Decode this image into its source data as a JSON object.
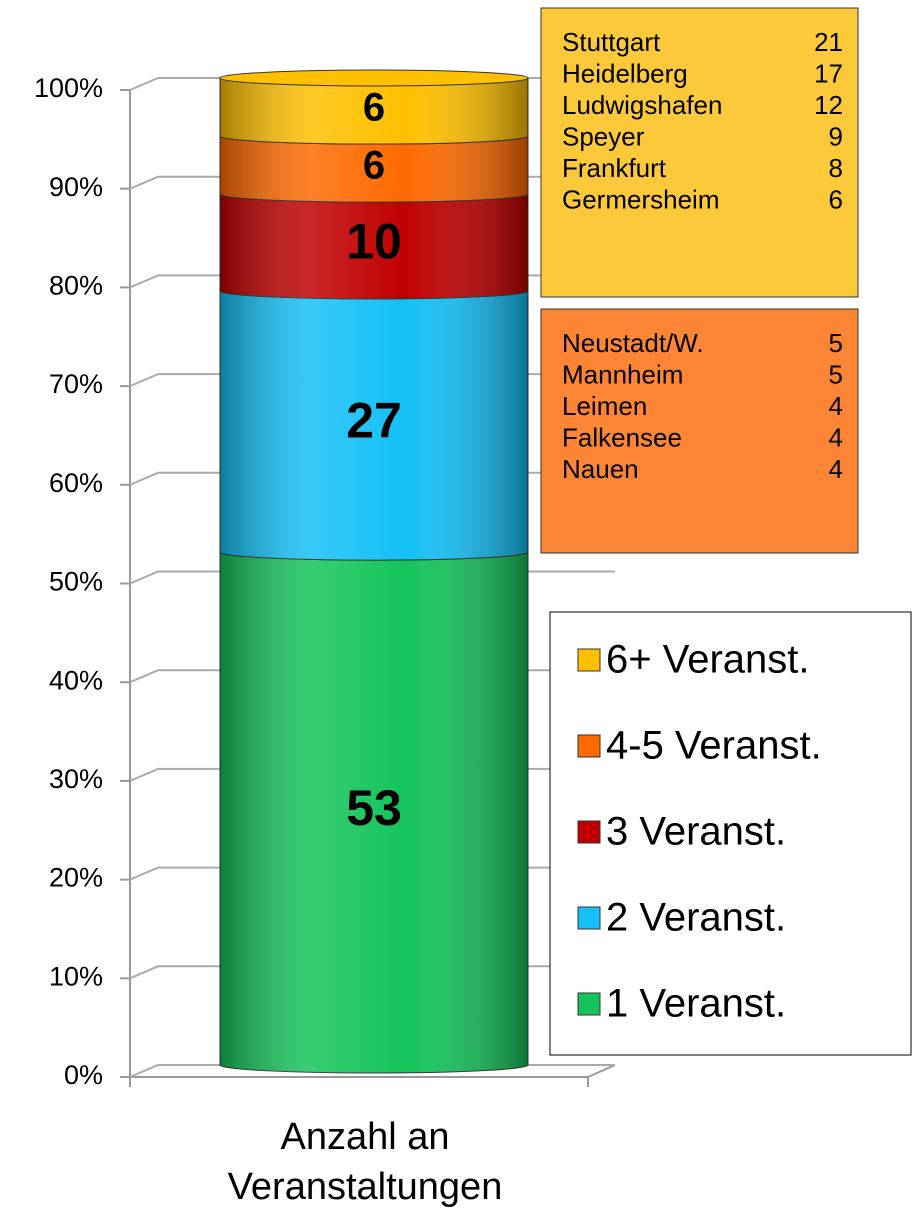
{
  "chart_data": {
    "type": "stacked_percent_bar",
    "categories": [
      "Anzahl an Veranstaltungen"
    ],
    "ylim": [
      0,
      100
    ],
    "yticks": [
      {
        "value": 0,
        "label": "0%"
      },
      {
        "value": 10,
        "label": "10%"
      },
      {
        "value": 20,
        "label": "20%"
      },
      {
        "value": 30,
        "label": "30%"
      },
      {
        "value": 40,
        "label": "40%"
      },
      {
        "value": 50,
        "label": "50%"
      },
      {
        "value": 60,
        "label": "60%"
      },
      {
        "value": 70,
        "label": "70%"
      },
      {
        "value": 80,
        "label": "80%"
      },
      {
        "value": 90,
        "label": "90%"
      },
      {
        "value": 100,
        "label": "100%"
      }
    ],
    "grid": true,
    "series": [
      {
        "name": "1 Veranst.",
        "color": "#14c45a",
        "values": [
          53
        ]
      },
      {
        "name": "2 Veranst.",
        "color": "#14c0f6",
        "values": [
          27
        ]
      },
      {
        "name": "3 Veranst.",
        "color": "#c00000",
        "values": [
          10
        ]
      },
      {
        "name": "4-5 Veranst.",
        "color": "#ff6a00",
        "values": [
          6
        ]
      },
      {
        "name": "6+ Veranst.",
        "color": "#ffc000",
        "values": [
          6
        ]
      }
    ],
    "city_lists": [
      {
        "color": "#fcc93b",
        "items": [
          {
            "name": "Stuttgart",
            "value": 21
          },
          {
            "name": "Heidelberg",
            "value": 17
          },
          {
            "name": "Ludwigshafen",
            "value": 12
          },
          {
            "name": "Speyer",
            "value": 9
          },
          {
            "name": "Frankfurt",
            "value": 8
          },
          {
            "name": "Germersheim",
            "value": 6
          }
        ]
      },
      {
        "color": "#fd8536",
        "items": [
          {
            "name": "Neustadt/W.",
            "value": 5
          },
          {
            "name": "Mannheim",
            "value": 5
          },
          {
            "name": "Leimen",
            "value": 4
          },
          {
            "name": "Falkensee",
            "value": 4
          },
          {
            "name": "Nauen",
            "value": 4
          }
        ]
      }
    ]
  }
}
